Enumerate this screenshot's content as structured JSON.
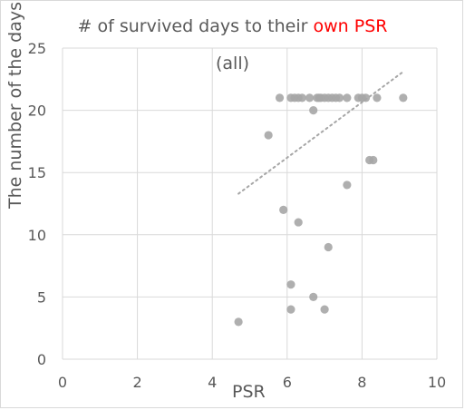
{
  "chart_data": {
    "type": "scatter",
    "title_prefix": "# of survived days to their ",
    "title_accent": "own PSR",
    "subtitle": "(all)",
    "xlabel": "PSR",
    "ylabel": "The number of the days",
    "xlim": [
      0,
      10
    ],
    "ylim": [
      0,
      25
    ],
    "x_ticks": [
      "0",
      "2",
      "4",
      "6",
      "8",
      "10"
    ],
    "y_ticks": [
      "0",
      "5",
      "10",
      "15",
      "20",
      "25"
    ],
    "grid": true,
    "colors": {
      "point": "#a6a6a6",
      "trendline": "#a6a6a6",
      "grid": "#d9d9d9",
      "accent": "#ff0000"
    },
    "points": [
      {
        "x": 4.7,
        "y": 3
      },
      {
        "x": 5.5,
        "y": 18
      },
      {
        "x": 5.8,
        "y": 21
      },
      {
        "x": 5.9,
        "y": 12
      },
      {
        "x": 6.1,
        "y": 6
      },
      {
        "x": 6.1,
        "y": 4
      },
      {
        "x": 6.1,
        "y": 21
      },
      {
        "x": 6.2,
        "y": 21
      },
      {
        "x": 6.3,
        "y": 11
      },
      {
        "x": 6.3,
        "y": 21
      },
      {
        "x": 6.4,
        "y": 21
      },
      {
        "x": 6.6,
        "y": 21
      },
      {
        "x": 6.7,
        "y": 20
      },
      {
        "x": 6.7,
        "y": 5
      },
      {
        "x": 6.8,
        "y": 21
      },
      {
        "x": 6.85,
        "y": 21
      },
      {
        "x": 6.9,
        "y": 21
      },
      {
        "x": 7.0,
        "y": 4
      },
      {
        "x": 7.0,
        "y": 21
      },
      {
        "x": 7.1,
        "y": 9
      },
      {
        "x": 7.1,
        "y": 21
      },
      {
        "x": 7.2,
        "y": 21
      },
      {
        "x": 7.3,
        "y": 21
      },
      {
        "x": 7.4,
        "y": 21
      },
      {
        "x": 7.6,
        "y": 14
      },
      {
        "x": 7.6,
        "y": 21
      },
      {
        "x": 7.9,
        "y": 21
      },
      {
        "x": 8.0,
        "y": 21
      },
      {
        "x": 8.1,
        "y": 21
      },
      {
        "x": 8.2,
        "y": 16
      },
      {
        "x": 8.3,
        "y": 16
      },
      {
        "x": 8.4,
        "y": 21
      },
      {
        "x": 9.1,
        "y": 21
      }
    ],
    "trendline": {
      "type": "linear",
      "start": {
        "x": 4.7,
        "y": 13.3
      },
      "end": {
        "x": 9.1,
        "y": 23.1
      }
    }
  }
}
